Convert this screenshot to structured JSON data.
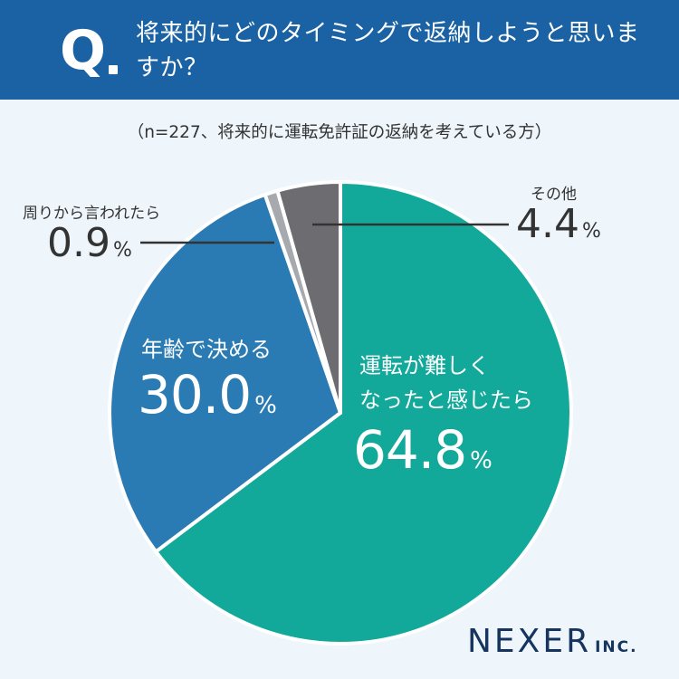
{
  "header": {
    "q_mark": "Q",
    "question": "将来的にどのタイミングで返納しようと思いますか？"
  },
  "subtitle": "（n=227、将来的に運転免許証の返納を考えている方）",
  "chart_data": {
    "type": "pie",
    "slices": [
      {
        "label": "運転が難しくなったと感じたら",
        "value": 64.8,
        "value_text": "64.8",
        "color": "#12a89a"
      },
      {
        "label": "年齢で決める",
        "value": 30.0,
        "value_text": "30.0",
        "color": "#2a7bb4"
      },
      {
        "label": "周りから言われたら",
        "value": 0.9,
        "value_text": "0.9",
        "color": "#a6a9ae"
      },
      {
        "label": "その他",
        "value": 4.4,
        "value_text": "4.4",
        "color": "#6d6c70"
      }
    ],
    "unit": "%"
  },
  "labels": {
    "driving_line1": "運転が難しく",
    "driving_line2": "なったと感じたら",
    "age": "年齢で決める",
    "others": "周りから言われたら",
    "other": "その他"
  },
  "brand": {
    "name": "NEXER",
    "suffix": "INC."
  }
}
